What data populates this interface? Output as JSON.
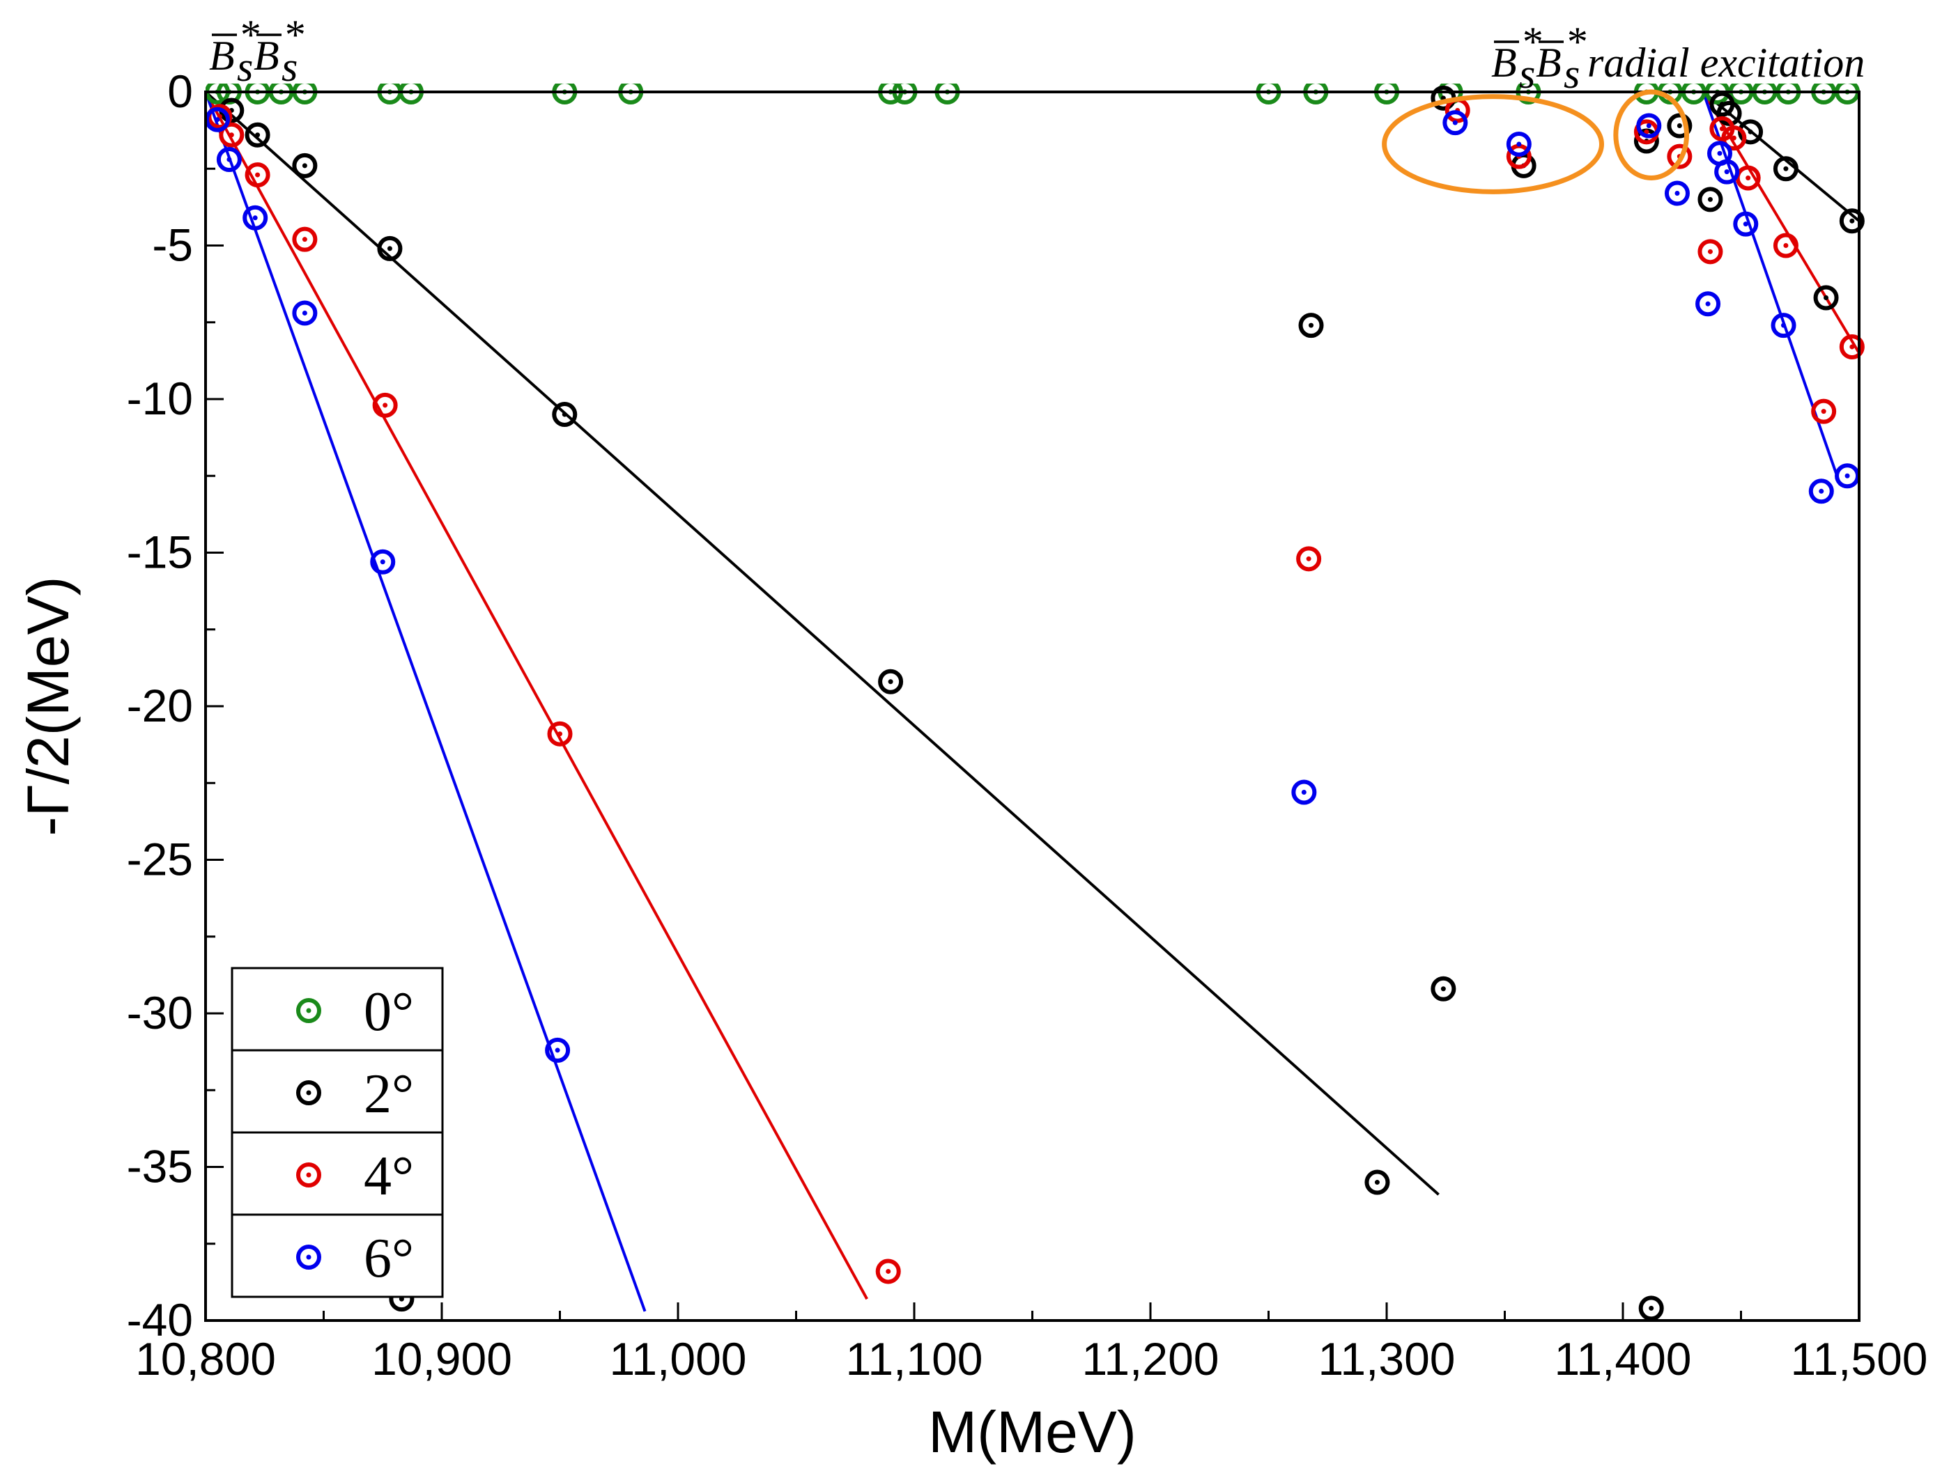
{
  "chart_data": {
    "type": "scatter",
    "title": "",
    "xlabel": "M(MeV)",
    "ylabel": "-Γ/2(MeV)",
    "xlim": [
      10800,
      11500
    ],
    "ylim": [
      -40,
      0
    ],
    "x_ticks": [
      10800,
      10900,
      11000,
      11100,
      11200,
      11300,
      11400,
      11500
    ],
    "x_tick_labels": [
      "10,800",
      "10,900",
      "11,000",
      "11,100",
      "11,200",
      "11,300",
      "11,400",
      "11,500"
    ],
    "y_ticks": [
      0,
      -5,
      -10,
      -15,
      -20,
      -25,
      -30,
      -35,
      -40
    ],
    "y_tick_labels": [
      "0",
      "-5",
      "-10",
      "-15",
      "-20",
      "-25",
      "-30",
      "-35",
      "-40"
    ],
    "grid": false,
    "legend_position": "bottom-left",
    "annotations": [
      {
        "name": "threshold-label",
        "base": "B̄",
        "sub": "s",
        "sup": "*",
        "text": "B̄s*B̄s*",
        "suffix": ""
      },
      {
        "name": "radial-label",
        "base": "B̄",
        "sub": "s",
        "sup": "*",
        "text": "B̄s*B̄s*",
        "suffix": " radial excitation"
      }
    ],
    "highlight_ellipses": [
      {
        "center": [
          11345,
          -1.7
        ],
        "rx_mev": 46,
        "ry_mev": 1.55
      },
      {
        "center": [
          11412,
          -1.4
        ],
        "rx_mev": 15,
        "ry_mev": 1.4
      }
    ],
    "series": [
      {
        "name": "0°",
        "angle": "0",
        "color": "#1a8a1a",
        "points": [
          [
            10805,
            0
          ],
          [
            10810,
            0
          ],
          [
            10822,
            0
          ],
          [
            10832,
            0
          ],
          [
            10842,
            0
          ],
          [
            10878,
            0
          ],
          [
            10887,
            0
          ],
          [
            10952,
            0
          ],
          [
            10980,
            0
          ],
          [
            11090,
            0
          ],
          [
            11096,
            0
          ],
          [
            11114,
            0
          ],
          [
            11250,
            0
          ],
          [
            11270,
            0
          ],
          [
            11300,
            0
          ],
          [
            11327,
            0
          ],
          [
            11360,
            0
          ],
          [
            11410,
            0
          ],
          [
            11420,
            0
          ],
          [
            11430,
            0
          ],
          [
            11440,
            0
          ],
          [
            11450,
            0
          ],
          [
            11460,
            0
          ],
          [
            11470,
            0
          ],
          [
            11485,
            0
          ],
          [
            11495,
            0
          ]
        ]
      },
      {
        "name": "2°",
        "angle": "2",
        "color": "#000000",
        "points": [
          [
            10811,
            -0.6
          ],
          [
            10822,
            -1.4
          ],
          [
            10842,
            -2.4
          ],
          [
            10878,
            -5.1
          ],
          [
            10952,
            -10.5
          ],
          [
            11090,
            -19.2
          ],
          [
            11268,
            -7.6
          ],
          [
            11296,
            -35.5
          ],
          [
            11324,
            -29.2
          ],
          [
            11324,
            -0.2
          ],
          [
            11358,
            -2.4
          ],
          [
            11410,
            -1.6
          ],
          [
            11412,
            -39.6
          ],
          [
            11424,
            -1.1
          ],
          [
            11437,
            -3.5
          ],
          [
            11442,
            -0.4
          ],
          [
            11445,
            -0.7
          ],
          [
            11454,
            -1.3
          ],
          [
            11469,
            -2.5
          ],
          [
            11486,
            -6.7
          ],
          [
            11497,
            -4.2
          ],
          [
            10883,
            -39.3
          ]
        ],
        "trend_line": [
          [
            10800,
            0
          ],
          [
            11322,
            -35.9
          ]
        ],
        "trend_line_right": [
          [
            11434,
            0
          ],
          [
            11500,
            -4.2
          ]
        ]
      },
      {
        "name": "4°",
        "angle": "4",
        "color": "#e00000",
        "points": [
          [
            10806,
            -0.8
          ],
          [
            10811,
            -1.4
          ],
          [
            10822,
            -2.7
          ],
          [
            10842,
            -4.8
          ],
          [
            10876,
            -10.2
          ],
          [
            10950,
            -20.9
          ],
          [
            11089,
            -38.4
          ],
          [
            11267,
            -15.2
          ],
          [
            11330,
            -0.6
          ],
          [
            11356,
            -2.1
          ],
          [
            11410,
            -1.3
          ],
          [
            11424,
            -2.1
          ],
          [
            11437,
            -5.2
          ],
          [
            11442,
            -1.2
          ],
          [
            11447,
            -1.5
          ],
          [
            11453,
            -2.8
          ],
          [
            11469,
            -5.0
          ],
          [
            11485,
            -10.4
          ],
          [
            11497,
            -8.3
          ]
        ],
        "trend_line": [
          [
            10800,
            0
          ],
          [
            11080,
            -39.3
          ]
        ],
        "trend_line_right": [
          [
            11434,
            0
          ],
          [
            11500,
            -8.5
          ]
        ]
      },
      {
        "name": "6°",
        "angle": "6",
        "color": "#0000ee",
        "points": [
          [
            10805,
            -0.9
          ],
          [
            10810,
            -2.2
          ],
          [
            10821,
            -4.1
          ],
          [
            10842,
            -7.2
          ],
          [
            10875,
            -15.3
          ],
          [
            10949,
            -31.2
          ],
          [
            11265,
            -22.8
          ],
          [
            11329,
            -1.0
          ],
          [
            11356,
            -1.7
          ],
          [
            11411,
            -1.1
          ],
          [
            11423,
            -3.3
          ],
          [
            11436,
            -6.9
          ],
          [
            11441,
            -2.0
          ],
          [
            11444,
            -2.6
          ],
          [
            11452,
            -4.3
          ],
          [
            11468,
            -7.6
          ],
          [
            11484,
            -13.0
          ],
          [
            11495,
            -12.5
          ]
        ],
        "trend_line": [
          [
            10800,
            0
          ],
          [
            10986,
            -39.7
          ]
        ],
        "trend_line_right": [
          [
            11434,
            0
          ],
          [
            11492,
            -12.8
          ]
        ]
      }
    ]
  }
}
